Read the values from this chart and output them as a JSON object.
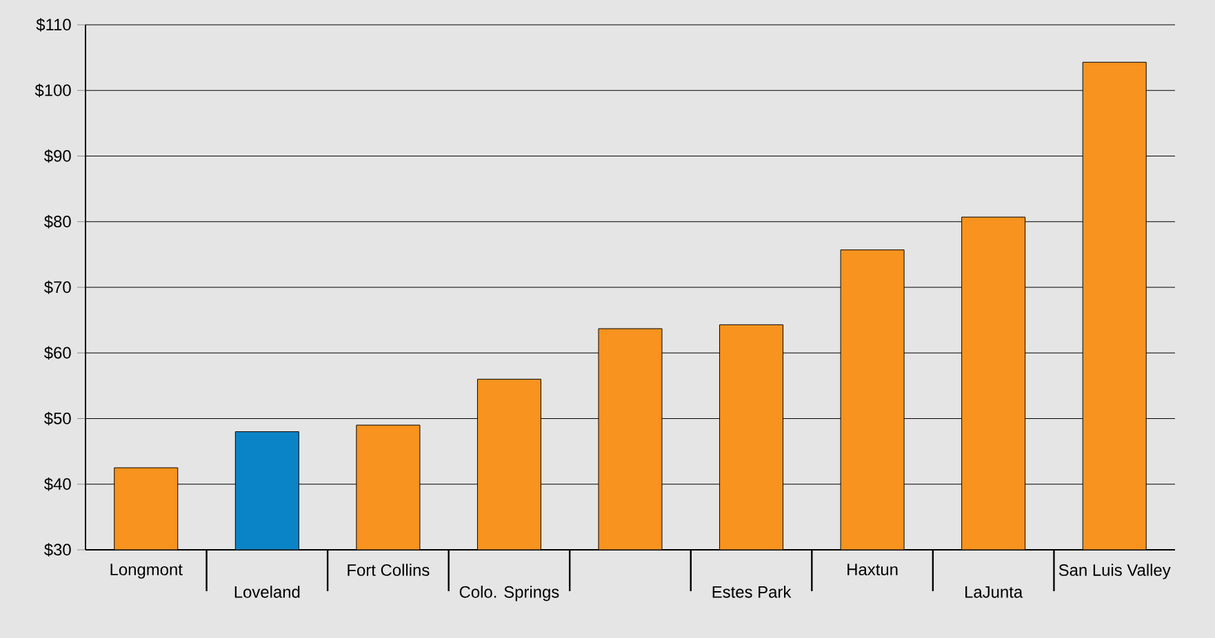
{
  "chart_data": {
    "type": "bar",
    "categories": [
      "Longmont",
      "Loveland",
      "Fort Collins",
      "Colo. Springs",
      null,
      "Estes Park",
      "Haxtun",
      "LaJunta",
      "San Luis Valley"
    ],
    "values": [
      42.5,
      48,
      49,
      56,
      63.7,
      64.3,
      75.7,
      80.7,
      104.3
    ],
    "colors": [
      "#f7931e",
      "#0a84c6",
      "#f7931e",
      "#f7931e",
      "#f7931e",
      "#f7931e",
      "#f7931e",
      "#f7931e",
      "#f7931e"
    ],
    "ylim": [
      30,
      110
    ],
    "yticks": [
      {
        "value": 30,
        "label": "$30"
      },
      {
        "value": 40,
        "label": "$40"
      },
      {
        "value": 50,
        "label": "$50"
      },
      {
        "value": 60,
        "label": "$60"
      },
      {
        "value": 70,
        "label": "$70"
      },
      {
        "value": 80,
        "label": "$80"
      },
      {
        "value": 90,
        "label": "$90"
      },
      {
        "value": 100,
        "label": "$100"
      },
      {
        "value": 110,
        "label": "$110"
      }
    ],
    "grid": "y"
  }
}
